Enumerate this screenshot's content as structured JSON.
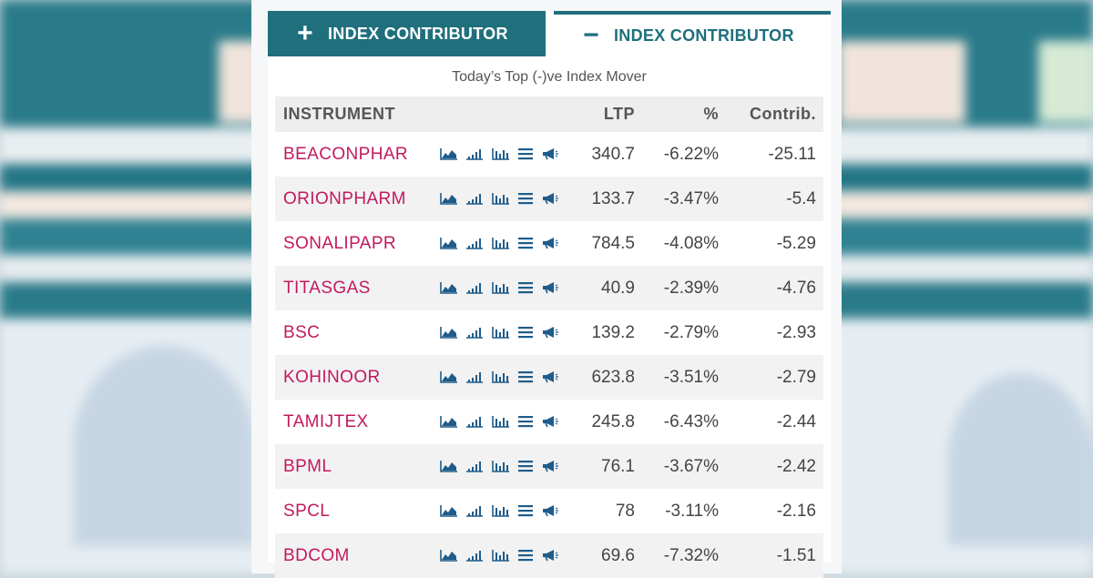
{
  "tabs": {
    "positive": {
      "symbol": "+",
      "label": "INDEX CONTRIBUTOR"
    },
    "negative": {
      "symbol": "−",
      "label": "INDEX CONTRIBUTOR"
    }
  },
  "subtitle": "Today’s Top (-)ve Index Mover",
  "table": {
    "headers": {
      "instrument": "INSTRUMENT",
      "ltp": "LTP",
      "pct": "%",
      "contrib": "Contrib."
    },
    "rows": [
      {
        "instrument": "BEACONPHAR",
        "ltp": "340.7",
        "pct": "-6.22%",
        "contrib": "-25.11"
      },
      {
        "instrument": "ORIONPHARM",
        "ltp": "133.7",
        "pct": "-3.47%",
        "contrib": "-5.4"
      },
      {
        "instrument": "SONALIPAPR",
        "ltp": "784.5",
        "pct": "-4.08%",
        "contrib": "-5.29"
      },
      {
        "instrument": "TITASGAS",
        "ltp": "40.9",
        "pct": "-2.39%",
        "contrib": "-4.76"
      },
      {
        "instrument": "BSC",
        "ltp": "139.2",
        "pct": "-2.79%",
        "contrib": "-2.93"
      },
      {
        "instrument": "KOHINOOR",
        "ltp": "623.8",
        "pct": "-3.51%",
        "contrib": "-2.79"
      },
      {
        "instrument": "TAMIJTEX",
        "ltp": "245.8",
        "pct": "-6.43%",
        "contrib": "-2.44"
      },
      {
        "instrument": "BPML",
        "ltp": "76.1",
        "pct": "-3.67%",
        "contrib": "-2.42"
      },
      {
        "instrument": "SPCL",
        "ltp": "78",
        "pct": "-3.11%",
        "contrib": "-2.16"
      },
      {
        "instrument": "BDCOM",
        "ltp": "69.6",
        "pct": "-7.32%",
        "contrib": "-1.51"
      }
    ],
    "row_icons": [
      "area-chart-icon",
      "signal-bars-icon",
      "bar-chart-icon",
      "list-icon",
      "megaphone-icon"
    ]
  },
  "colors": {
    "tab_active": "#1f6f7d",
    "instrument_text": "#c2195e",
    "header_bg": "#eeeeee",
    "row_alt_bg": "#f2f2f2"
  }
}
